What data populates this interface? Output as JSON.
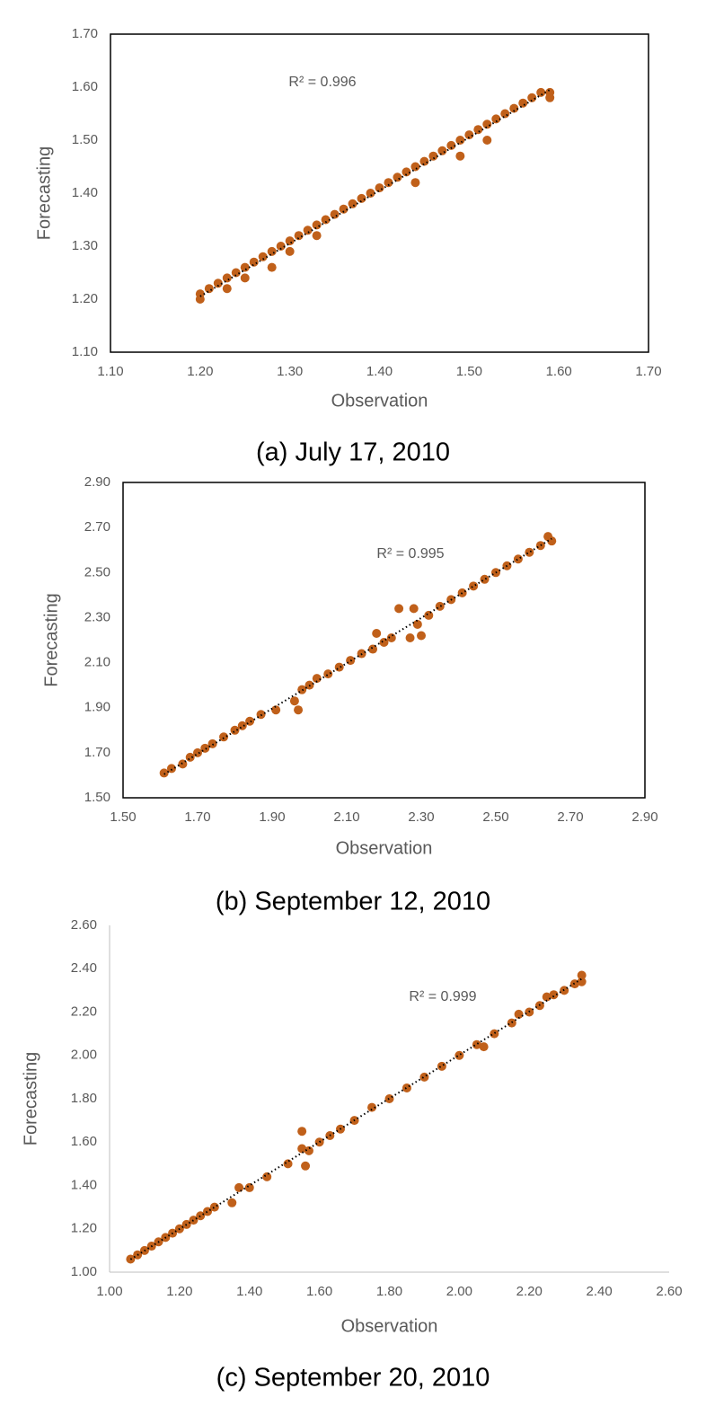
{
  "chart_data": [
    {
      "type": "scatter",
      "frame": true,
      "trendline": true,
      "color": "#c0601a",
      "annotation": "R² = 0.996",
      "x_label": "Observation",
      "y_label": "Forecasting",
      "caption": "(a)  July  17,  2010",
      "x": [
        1.2,
        1.2,
        1.21,
        1.22,
        1.23,
        1.23,
        1.24,
        1.25,
        1.25,
        1.26,
        1.27,
        1.28,
        1.28,
        1.29,
        1.3,
        1.3,
        1.31,
        1.32,
        1.33,
        1.33,
        1.34,
        1.35,
        1.36,
        1.37,
        1.38,
        1.39,
        1.4,
        1.41,
        1.42,
        1.43,
        1.44,
        1.44,
        1.45,
        1.46,
        1.47,
        1.48,
        1.49,
        1.49,
        1.5,
        1.51,
        1.52,
        1.52,
        1.53,
        1.54,
        1.55,
        1.56,
        1.57,
        1.58,
        1.59,
        1.59
      ],
      "values": [
        1.21,
        1.2,
        1.22,
        1.23,
        1.24,
        1.22,
        1.25,
        1.26,
        1.24,
        1.27,
        1.28,
        1.29,
        1.26,
        1.3,
        1.31,
        1.29,
        1.32,
        1.33,
        1.34,
        1.32,
        1.35,
        1.36,
        1.37,
        1.38,
        1.39,
        1.4,
        1.41,
        1.42,
        1.43,
        1.44,
        1.45,
        1.42,
        1.46,
        1.47,
        1.48,
        1.49,
        1.5,
        1.47,
        1.51,
        1.52,
        1.53,
        1.5,
        1.54,
        1.55,
        1.56,
        1.57,
        1.58,
        1.59,
        1.59,
        1.58
      ],
      "xlim": [
        1.1,
        1.7
      ],
      "ylim": [
        1.1,
        1.7
      ],
      "xticks": [
        {
          "value": 1.1,
          "label": "1.10"
        },
        {
          "value": 1.2,
          "label": "1.20"
        },
        {
          "value": 1.3,
          "label": "1.30"
        },
        {
          "value": 1.4,
          "label": "1.40"
        },
        {
          "value": 1.5,
          "label": "1.50"
        },
        {
          "value": 1.6,
          "label": "1.60"
        },
        {
          "value": 1.7,
          "label": "1.70"
        }
      ],
      "yticks": [
        {
          "value": 1.1,
          "label": "1.10"
        },
        {
          "value": 1.2,
          "label": "1.20"
        },
        {
          "value": 1.3,
          "label": "1.30"
        },
        {
          "value": 1.4,
          "label": "1.40"
        },
        {
          "value": 1.5,
          "label": "1.50"
        },
        {
          "value": 1.6,
          "label": "1.60"
        },
        {
          "value": 1.7,
          "label": "1.70"
        }
      ]
    },
    {
      "type": "scatter",
      "frame": true,
      "trendline": true,
      "color": "#c0601a",
      "annotation": "R² = 0.995",
      "x_label": "Observation",
      "y_label": "Forecasting",
      "caption": "(b)  September  12,  2010",
      "x": [
        1.61,
        1.63,
        1.66,
        1.68,
        1.7,
        1.72,
        1.74,
        1.77,
        1.8,
        1.82,
        1.84,
        1.87,
        1.91,
        1.96,
        1.97,
        1.98,
        2.0,
        2.02,
        2.05,
        2.08,
        2.11,
        2.14,
        2.17,
        2.18,
        2.2,
        2.22,
        2.24,
        2.27,
        2.28,
        2.29,
        2.3,
        2.32,
        2.35,
        2.38,
        2.41,
        2.44,
        2.47,
        2.5,
        2.53,
        2.56,
        2.59,
        2.62,
        2.64,
        2.65
      ],
      "values": [
        1.61,
        1.63,
        1.65,
        1.68,
        1.7,
        1.72,
        1.74,
        1.77,
        1.8,
        1.82,
        1.84,
        1.87,
        1.89,
        1.93,
        1.89,
        1.98,
        2.0,
        2.03,
        2.05,
        2.08,
        2.11,
        2.14,
        2.16,
        2.23,
        2.19,
        2.21,
        2.34,
        2.21,
        2.34,
        2.27,
        2.22,
        2.31,
        2.35,
        2.38,
        2.41,
        2.44,
        2.47,
        2.5,
        2.53,
        2.56,
        2.59,
        2.62,
        2.66,
        2.64
      ],
      "xlim": [
        1.5,
        2.9
      ],
      "ylim": [
        1.5,
        2.9
      ],
      "xticks": [
        {
          "value": 1.5,
          "label": "1.50"
        },
        {
          "value": 1.7,
          "label": "1.70"
        },
        {
          "value": 1.9,
          "label": "1.90"
        },
        {
          "value": 2.1,
          "label": "2.10"
        },
        {
          "value": 2.3,
          "label": "2.30"
        },
        {
          "value": 2.5,
          "label": "2.50"
        },
        {
          "value": 2.7,
          "label": "2.70"
        },
        {
          "value": 2.9,
          "label": "2.90"
        }
      ],
      "yticks": [
        {
          "value": 1.5,
          "label": "1.50"
        },
        {
          "value": 1.7,
          "label": "1.70"
        },
        {
          "value": 1.9,
          "label": "1.90"
        },
        {
          "value": 2.1,
          "label": "2.10"
        },
        {
          "value": 2.3,
          "label": "2.30"
        },
        {
          "value": 2.5,
          "label": "2.50"
        },
        {
          "value": 2.7,
          "label": "2.70"
        },
        {
          "value": 2.9,
          "label": "2.90"
        }
      ]
    },
    {
      "type": "scatter",
      "frame": false,
      "trendline": true,
      "color": "#c0601a",
      "annotation": "R² = 0.999",
      "x_label": "Observation",
      "y_label": "Forecasting",
      "caption": "(c)  September  20,  2010",
      "x": [
        1.06,
        1.08,
        1.1,
        1.12,
        1.14,
        1.16,
        1.18,
        1.2,
        1.22,
        1.24,
        1.26,
        1.28,
        1.3,
        1.35,
        1.37,
        1.4,
        1.45,
        1.51,
        1.55,
        1.55,
        1.56,
        1.57,
        1.6,
        1.63,
        1.66,
        1.7,
        1.75,
        1.8,
        1.85,
        1.9,
        1.95,
        2.0,
        2.05,
        2.07,
        2.1,
        2.15,
        2.17,
        2.2,
        2.23,
        2.25,
        2.27,
        2.3,
        2.33,
        2.35,
        2.35
      ],
      "values": [
        1.06,
        1.08,
        1.1,
        1.12,
        1.14,
        1.16,
        1.18,
        1.2,
        1.22,
        1.24,
        1.26,
        1.28,
        1.3,
        1.32,
        1.39,
        1.39,
        1.44,
        1.5,
        1.65,
        1.57,
        1.49,
        1.56,
        1.6,
        1.63,
        1.66,
        1.7,
        1.76,
        1.8,
        1.85,
        1.9,
        1.95,
        2.0,
        2.05,
        2.04,
        2.1,
        2.15,
        2.19,
        2.2,
        2.23,
        2.27,
        2.28,
        2.3,
        2.33,
        2.37,
        2.34
      ],
      "xlim": [
        1.0,
        2.6
      ],
      "ylim": [
        1.0,
        2.6
      ],
      "xticks": [
        {
          "value": 1.0,
          "label": "1.00"
        },
        {
          "value": 1.2,
          "label": "1.20"
        },
        {
          "value": 1.4,
          "label": "1.40"
        },
        {
          "value": 1.6,
          "label": "1.60"
        },
        {
          "value": 1.8,
          "label": "1.80"
        },
        {
          "value": 2.0,
          "label": "2.00"
        },
        {
          "value": 2.2,
          "label": "2.20"
        },
        {
          "value": 2.4,
          "label": "2.40"
        },
        {
          "value": 2.6,
          "label": "2.60"
        }
      ],
      "yticks": [
        {
          "value": 1.0,
          "label": "1.00"
        },
        {
          "value": 1.2,
          "label": "1.20"
        },
        {
          "value": 1.4,
          "label": "1.40"
        },
        {
          "value": 1.6,
          "label": "1.60"
        },
        {
          "value": 1.8,
          "label": "1.80"
        },
        {
          "value": 2.0,
          "label": "2.00"
        },
        {
          "value": 2.2,
          "label": "2.20"
        },
        {
          "value": 2.4,
          "label": "2.40"
        },
        {
          "value": 2.6,
          "label": "2.60"
        }
      ]
    }
  ]
}
